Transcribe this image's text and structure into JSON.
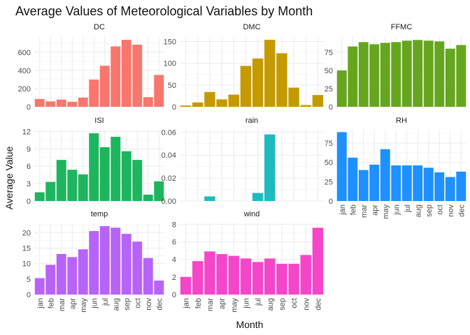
{
  "chart_data": {
    "type": "bar",
    "title": "Average Values of Meteorological Variables by Month",
    "xlabel": "Month",
    "ylabel": "Average Value",
    "categories": [
      "jan",
      "feb",
      "mar",
      "apr",
      "may",
      "jun",
      "jul",
      "aug",
      "sep",
      "oct",
      "nov",
      "dec"
    ],
    "grid": true,
    "legend": "none",
    "panels": [
      {
        "name": "DC",
        "color": "#F8766D",
        "ylim": [
          0,
          775
        ],
        "yticks": [
          0,
          200,
          400,
          600
        ],
        "ytick_labels": [
          "0",
          "200",
          "400",
          "600"
        ],
        "values": [
          86,
          59,
          79,
          55,
          101,
          299,
          451,
          664,
          736,
          683,
          106,
          350
        ]
      },
      {
        "name": "DMC",
        "color": "#C49A00",
        "ylim": [
          0,
          162
        ],
        "yticks": [
          0,
          50,
          100,
          150
        ],
        "ytick_labels": [
          "0",
          "50",
          "100",
          "150"
        ],
        "values": [
          3,
          10,
          34,
          17,
          28,
          94,
          111,
          154,
          123,
          44,
          4,
          27
        ]
      },
      {
        "name": "FFMC",
        "color": "#66A61E",
        "ylim": [
          0,
          97
        ],
        "yticks": [
          0,
          25,
          50,
          75
        ],
        "ytick_labels": [
          "0",
          "25",
          "50",
          "75"
        ],
        "values": [
          50,
          83,
          89,
          86,
          88,
          89,
          91,
          92,
          91,
          90,
          80,
          85
        ]
      },
      {
        "name": "ISI",
        "color": "#1DB55E",
        "ylim": [
          0,
          12.3
        ],
        "yticks": [
          0,
          3,
          6,
          9,
          12
        ],
        "ytick_labels": [
          "0",
          "3",
          "6",
          "9",
          "12"
        ],
        "values": [
          1.5,
          3.3,
          7.1,
          5.4,
          4.6,
          11.7,
          9.3,
          11.1,
          8.6,
          7.1,
          1.1,
          3.4
        ]
      },
      {
        "name": "rain",
        "color": "#1DBBBF",
        "ylim": [
          0,
          0.062
        ],
        "yticks": [
          0,
          0.02,
          0.04,
          0.06
        ],
        "ytick_labels": [
          "0.00",
          "0.02",
          "0.04",
          "0.06"
        ],
        "values": [
          0,
          0,
          0.004,
          0,
          0,
          0,
          0.007,
          0.058,
          0,
          0,
          0,
          0
        ]
      },
      {
        "name": "RH",
        "color": "#1E90FF",
        "ylim": [
          0,
          92
        ],
        "yticks": [
          0,
          25,
          50,
          75
        ],
        "ytick_labels": [
          "0",
          "25",
          "50",
          "75"
        ],
        "values": [
          89,
          56,
          40,
          47,
          67,
          46,
          46,
          46,
          43,
          37,
          31,
          38
        ]
      },
      {
        "name": "temp",
        "color": "#B863F8",
        "ylim": [
          0,
          23
        ],
        "yticks": [
          0,
          5,
          10,
          15,
          20
        ],
        "ytick_labels": [
          "0",
          "5",
          "10",
          "15",
          "20"
        ],
        "values": [
          5.3,
          9.6,
          13.1,
          12.1,
          14.6,
          20.5,
          22.1,
          21.6,
          19.6,
          17.1,
          11.8,
          4.5
        ]
      },
      {
        "name": "wind",
        "color": "#F545C8",
        "ylim": [
          0,
          8.1
        ],
        "yticks": [
          0,
          2,
          4,
          6,
          8
        ],
        "ytick_labels": [
          "0",
          "2",
          "4",
          "6",
          "8"
        ],
        "values": [
          2.0,
          3.8,
          4.9,
          4.6,
          4.4,
          4.1,
          3.7,
          4.1,
          3.5,
          3.5,
          4.5,
          7.6
        ]
      }
    ]
  }
}
